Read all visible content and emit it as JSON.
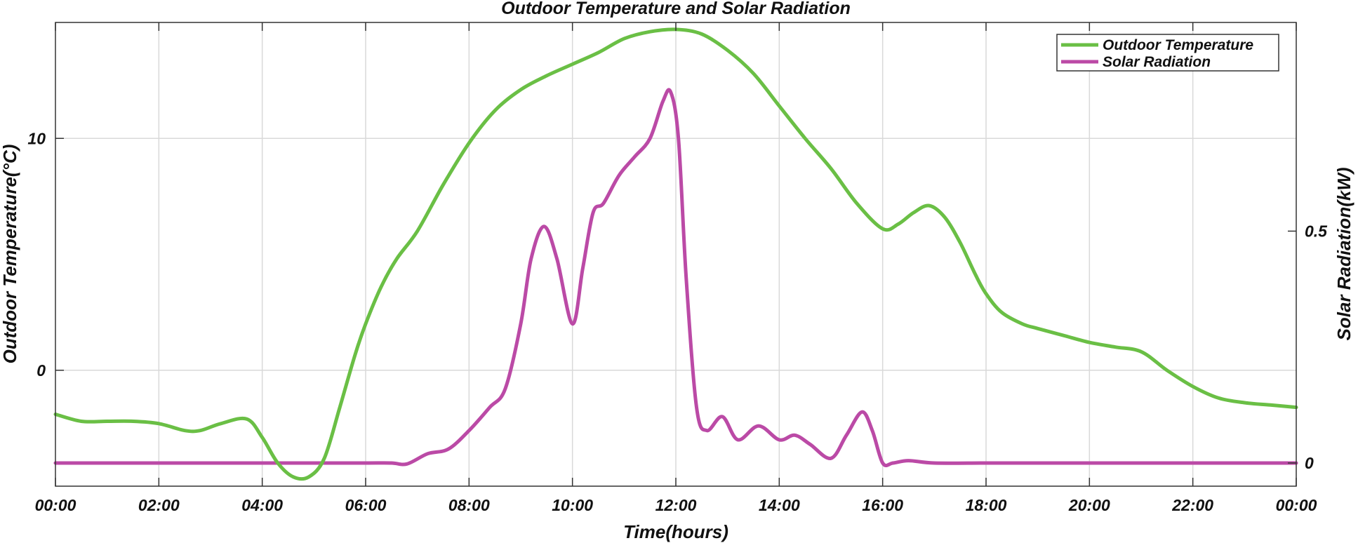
{
  "chart_data": {
    "type": "line",
    "title": "Outdoor Temperature and Solar Radiation",
    "xlabel": "Time(hours)",
    "ylabel_left": "Outdoor Temperature(°C)",
    "ylabel_right": "Solar Radiation(kW)",
    "x_range": [
      0,
      24
    ],
    "x_ticks": [
      0,
      2,
      4,
      6,
      8,
      10,
      12,
      14,
      16,
      18,
      20,
      22,
      24
    ],
    "x_tick_labels": [
      "00:00",
      "02:00",
      "04:00",
      "06:00",
      "08:00",
      "10:00",
      "12:00",
      "14:00",
      "16:00",
      "18:00",
      "20:00",
      "22:00",
      "00:00"
    ],
    "ylim_left": [
      -5,
      15
    ],
    "yticks_left": [
      0,
      10
    ],
    "yticks_left_labels": [
      "0",
      "10"
    ],
    "ylim_right": [
      -0.05,
      0.95
    ],
    "yticks_right": [
      0,
      0.5
    ],
    "yticks_right_labels": [
      "0",
      "0.5"
    ],
    "grid": true,
    "legend_position": "top-right",
    "series": [
      {
        "name": "Outdoor Temperature",
        "axis": "left",
        "color": "#6abf45",
        "x": [
          0,
          0.5,
          1,
          1.5,
          2,
          2.5,
          2.8,
          3.2,
          3.7,
          4.0,
          4.3,
          4.6,
          4.9,
          5.2,
          5.5,
          5.8,
          6.0,
          6.3,
          6.6,
          7.0,
          7.5,
          8.0,
          8.5,
          9.0,
          9.5,
          10.0,
          10.5,
          11.0,
          11.5,
          12.0,
          12.5,
          13.0,
          13.5,
          14.0,
          14.5,
          15.0,
          15.5,
          16.0,
          16.3,
          16.6,
          16.9,
          17.2,
          17.5,
          17.8,
          18.0,
          18.3,
          18.7,
          19.0,
          19.5,
          20.0,
          20.5,
          21.0,
          21.5,
          22.0,
          22.5,
          23.0,
          23.5,
          24.0
        ],
        "y": [
          -1.9,
          -2.2,
          -2.2,
          -2.2,
          -2.3,
          -2.6,
          -2.6,
          -2.3,
          -2.1,
          -2.9,
          -4.0,
          -4.6,
          -4.6,
          -3.8,
          -1.6,
          0.7,
          2.0,
          3.6,
          4.8,
          6.0,
          8.0,
          9.8,
          11.2,
          12.1,
          12.7,
          13.2,
          13.7,
          14.3,
          14.6,
          14.7,
          14.5,
          13.8,
          12.8,
          11.4,
          10.0,
          8.7,
          7.2,
          6.1,
          6.3,
          6.8,
          7.1,
          6.6,
          5.5,
          4.1,
          3.3,
          2.5,
          2.0,
          1.8,
          1.5,
          1.2,
          1.0,
          0.8,
          0.0,
          -0.7,
          -1.2,
          -1.4,
          -1.5,
          -1.6
        ]
      },
      {
        "name": "Solar Radiation",
        "axis": "right",
        "color": "#bb4aa6",
        "x": [
          0,
          1,
          2,
          3,
          4,
          5,
          6,
          6.5,
          6.8,
          7.2,
          7.6,
          8.0,
          8.4,
          8.7,
          9.0,
          9.2,
          9.45,
          9.7,
          10.0,
          10.2,
          10.4,
          10.6,
          10.9,
          11.2,
          11.5,
          11.75,
          11.9,
          12.05,
          12.2,
          12.4,
          12.6,
          12.9,
          13.2,
          13.6,
          14.0,
          14.3,
          14.6,
          15.0,
          15.3,
          15.6,
          15.8,
          16.0,
          16.2,
          16.5,
          17.0,
          18.0,
          19,
          20,
          21,
          22,
          23,
          24
        ],
        "y": [
          0.0,
          0.0,
          0.0,
          0.0,
          0.0,
          0.0,
          0.0,
          0.0,
          -0.002,
          0.02,
          0.03,
          0.07,
          0.12,
          0.16,
          0.3,
          0.44,
          0.51,
          0.44,
          0.3,
          0.42,
          0.54,
          0.56,
          0.62,
          0.66,
          0.7,
          0.78,
          0.8,
          0.7,
          0.4,
          0.12,
          0.07,
          0.1,
          0.05,
          0.08,
          0.05,
          0.06,
          0.04,
          0.01,
          0.06,
          0.11,
          0.07,
          0.0,
          0.0,
          0.005,
          0.0,
          0.0,
          0.0,
          0.0,
          0.0,
          0.0,
          0.0,
          0.0
        ]
      }
    ]
  }
}
